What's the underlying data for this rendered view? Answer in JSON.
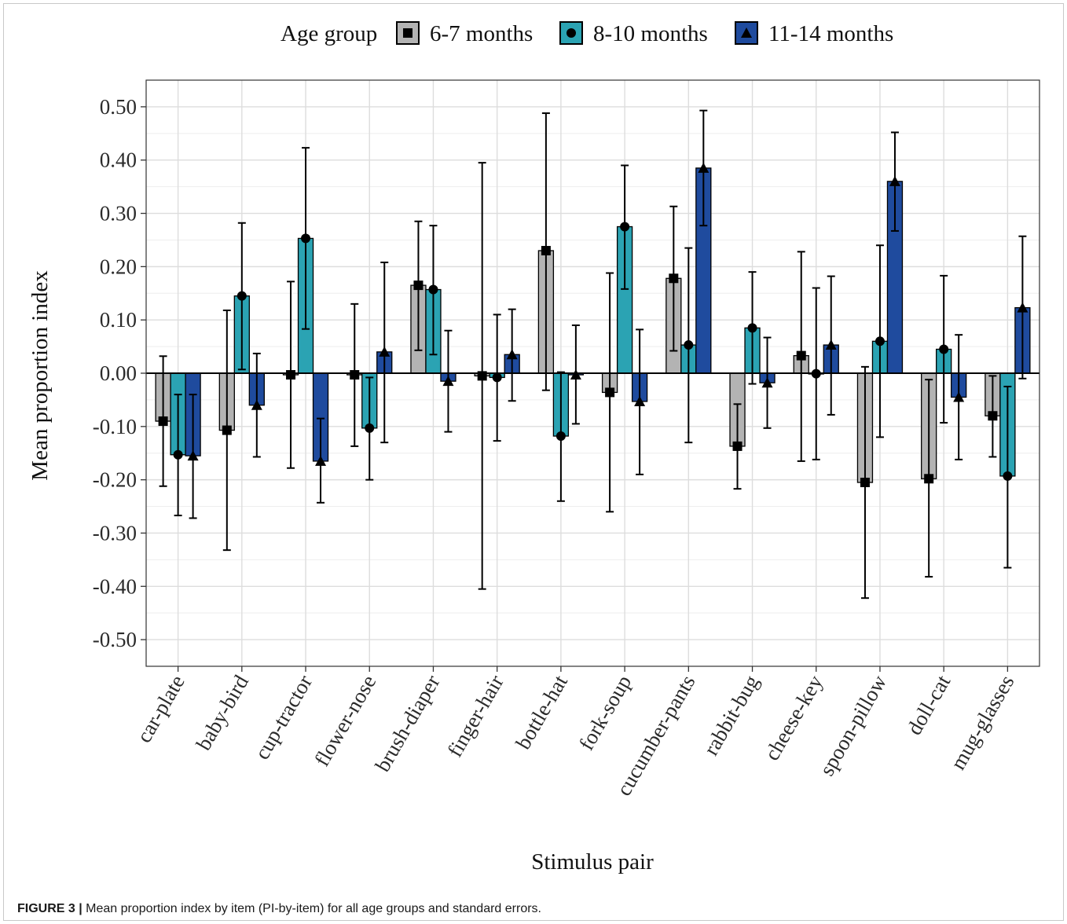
{
  "caption": {
    "label": "FIGURE 3 |",
    "text": "Mean proportion index by item (PI-by-item) for all age groups and standard errors."
  },
  "chart_data": {
    "type": "bar",
    "xlabel": "Stimulus pair",
    "ylabel": "Mean proportion index",
    "ylim": [
      -0.55,
      0.55
    ],
    "yticks": [
      -0.5,
      -0.4,
      -0.3,
      -0.2,
      -0.1,
      0.0,
      0.1,
      0.2,
      0.3,
      0.4,
      0.5
    ],
    "ytick_labels": [
      "-0.50",
      "-0.40",
      "-0.30",
      "-0.20",
      "-0.10",
      "0.00",
      "0.10",
      "0.20",
      "0.30",
      "0.40",
      "0.50"
    ],
    "grid": true,
    "legend": {
      "title": "Age group",
      "position": "top"
    },
    "categories": [
      "car-plate",
      "baby-bird",
      "cup-tractor",
      "flower-nose",
      "brush-diaper",
      "finger-hair",
      "bottle-hat",
      "fork-soup",
      "cucumber-pants",
      "rabbit-bug",
      "cheese-key",
      "spoon-pillow",
      "doll-cat",
      "mug-glasses"
    ],
    "series": [
      {
        "name": "6-7 months",
        "color": "#b3b3b3",
        "marker": "square",
        "values": [
          -0.09,
          -0.107,
          -0.003,
          -0.003,
          0.165,
          -0.005,
          0.23,
          -0.036,
          0.178,
          -0.137,
          0.033,
          -0.205,
          -0.198,
          -0.08
        ],
        "err_low": [
          -0.212,
          -0.332,
          -0.178,
          -0.137,
          0.043,
          -0.405,
          -0.032,
          -0.26,
          0.042,
          -0.217,
          -0.165,
          -0.422,
          -0.382,
          -0.157
        ],
        "err_high": [
          0.032,
          0.118,
          0.172,
          0.13,
          0.285,
          0.395,
          0.488,
          0.188,
          0.313,
          -0.058,
          0.228,
          0.012,
          -0.012,
          -0.005
        ]
      },
      {
        "name": "8-10 months",
        "color": "#2ba3b3",
        "marker": "circle",
        "values": [
          -0.153,
          0.145,
          0.253,
          -0.103,
          0.157,
          -0.008,
          -0.118,
          0.275,
          0.053,
          0.085,
          -0.001,
          0.06,
          0.045,
          -0.193
        ],
        "err_low": [
          -0.267,
          0.007,
          0.083,
          -0.2,
          0.035,
          -0.127,
          -0.24,
          0.158,
          -0.13,
          -0.02,
          -0.162,
          -0.12,
          -0.093,
          -0.365
        ],
        "err_high": [
          -0.04,
          0.282,
          0.423,
          -0.008,
          0.277,
          0.11,
          0.002,
          0.39,
          0.235,
          0.19,
          0.16,
          0.24,
          0.183,
          -0.025
        ]
      },
      {
        "name": "11-14 months",
        "color": "#1f4b9e",
        "marker": "triangle",
        "values": [
          -0.155,
          -0.06,
          -0.165,
          0.04,
          -0.015,
          0.035,
          -0.003,
          -0.053,
          0.385,
          -0.018,
          0.053,
          0.36,
          -0.045,
          0.123
        ],
        "err_low": [
          -0.272,
          -0.157,
          -0.243,
          -0.13,
          -0.11,
          -0.052,
          -0.095,
          -0.19,
          0.277,
          -0.103,
          -0.078,
          0.267,
          -0.162,
          -0.01
        ],
        "err_high": [
          -0.04,
          0.037,
          -0.085,
          0.208,
          0.08,
          0.12,
          0.09,
          0.082,
          0.493,
          0.067,
          0.182,
          0.452,
          0.072,
          0.257
        ]
      }
    ]
  }
}
